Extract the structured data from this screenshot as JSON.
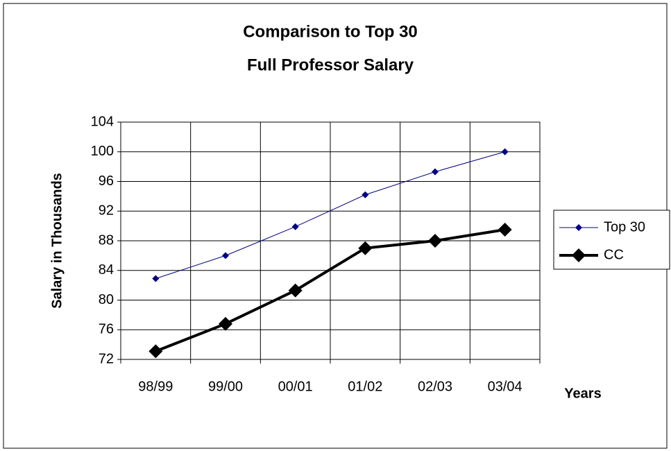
{
  "chart_data": {
    "type": "line",
    "title": [
      "Comparison to Top 30",
      "Full Professor Salary"
    ],
    "x_label": "Years",
    "y_label": "Salary in Thousands",
    "categories": [
      "98/99",
      "99/00",
      "00/01",
      "01/02",
      "02/03",
      "03/04"
    ],
    "series": [
      {
        "name": "Top 30",
        "color": "#000080",
        "values": [
          82.9,
          86.0,
          89.9,
          94.2,
          97.3,
          100.0
        ]
      },
      {
        "name": "CC",
        "color": "#000000",
        "values": [
          73.1,
          76.8,
          81.3,
          87.0,
          88.0,
          89.5
        ]
      }
    ],
    "ylim": [
      72,
      104
    ],
    "yticks": [
      72,
      76,
      80,
      84,
      88,
      92,
      96,
      100,
      104
    ],
    "grid": true,
    "legend": "right"
  }
}
